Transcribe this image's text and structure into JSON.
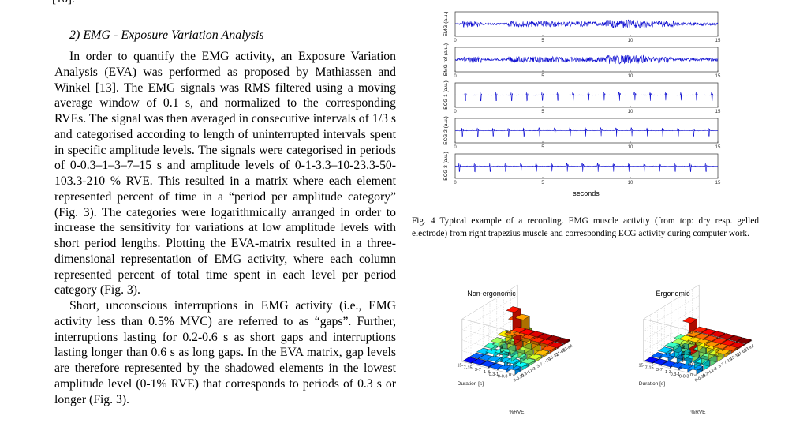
{
  "page": {
    "top_fragment": "[10].",
    "section_heading": "2)  EMG - Exposure Variation Analysis",
    "paragraphs": [
      "In order to quantify the EMG activity, an Exposure Variation Analysis (EVA) was performed as proposed by Mathiassen and Winkel [13]. The EMG signals was RMS filtered using a moving average window of 0.1 s, and normalized to the corresponding RVEs. The signal was then averaged in consecutive intervals of 1/3 s and categorised according to length of uninterrupted intervals spent in specific amplitude levels. The signals were categorised in periods of 0-0.3–1–3–7–15 s and amplitude levels of 0-1-3.3–10-23.3-50-103.3-210 % RVE. This resulted in a matrix where each element represented percent of time in a “period per amplitude category” (Fig. 3). The categories were logarithmically arranged in order to increase the sensitivity for variations at low amplitude levels with short period lengths. Plotting the EVA-matrix resulted in a three-dimensional representation of EMG activity, where each column represented percent of total time spent in each level per period category (Fig. 3).",
      "Short, unconscious interruptions in EMG activity (i.e., EMG activity less than 0.5% MVC) are referred to as “gaps”. Further, interruptions lasting for 0.2-0.6 s as short gaps and interruptions lasting longer than 0.6 s as long gaps. In the EVA matrix, gap levels are therefore represented by the shadowed elements in the lowest amplitude level (0-1% RVE) that corresponds to periods of 0.3 s or longer (Fig. 3)."
    ],
    "figure4_caption": "Fig. 4  Typical example of a recording. EMG muscle activity (from top: dry resp. gelled electrode) from right trapezius muscle and corresponding ECG activity during computer work."
  },
  "chart_data": [
    {
      "type": "line",
      "traces": [
        "EMG (a.u.)",
        "EMG ref (a.u.)",
        "ECG 1 (a.u.)",
        "ECG 2 (a.u.)",
        "ECG 3 (a.u.)"
      ],
      "x_ticks": [
        "0",
        "5",
        "10",
        "15"
      ],
      "xlim": [
        0,
        15
      ],
      "xlabel": "seconds",
      "line_color": "#0a0ad0"
    },
    {
      "type": "bar3d",
      "title": "Non-ergonomic",
      "zlabel": "% Time",
      "z_ticks": [
        "0",
        "10",
        "20",
        "30",
        "40"
      ],
      "zlim": [
        0,
        40
      ],
      "duration_label": "Duration [s]",
      "duration_ticks": [
        "0-0.3",
        "0.3-1",
        "1-3",
        "3-7",
        "7-15",
        "15-"
      ],
      "rve_label": "%RVE",
      "rve_ticks": [
        "0-0.33",
        "0.3-1",
        "1-3",
        "3-7",
        "7-15",
        "15-31",
        "31-63",
        "63-inf"
      ]
    },
    {
      "type": "bar3d",
      "title": "Ergonomic",
      "zlabel": "% Time",
      "z_ticks": [
        "0",
        "10",
        "20",
        "30",
        "40"
      ],
      "zlim": [
        0,
        40
      ],
      "duration_label": "Duration [s]",
      "duration_ticks": [
        "0-0.3",
        "0.3-1",
        "1-3",
        "3-7",
        "7-15",
        "15-"
      ],
      "rve_label": "%RVE",
      "rve_ticks": [
        "0-0.33",
        "0.3-1",
        "1-3",
        "3-7",
        "7-15",
        "15-31",
        "31-63",
        "63-inf"
      ]
    }
  ]
}
